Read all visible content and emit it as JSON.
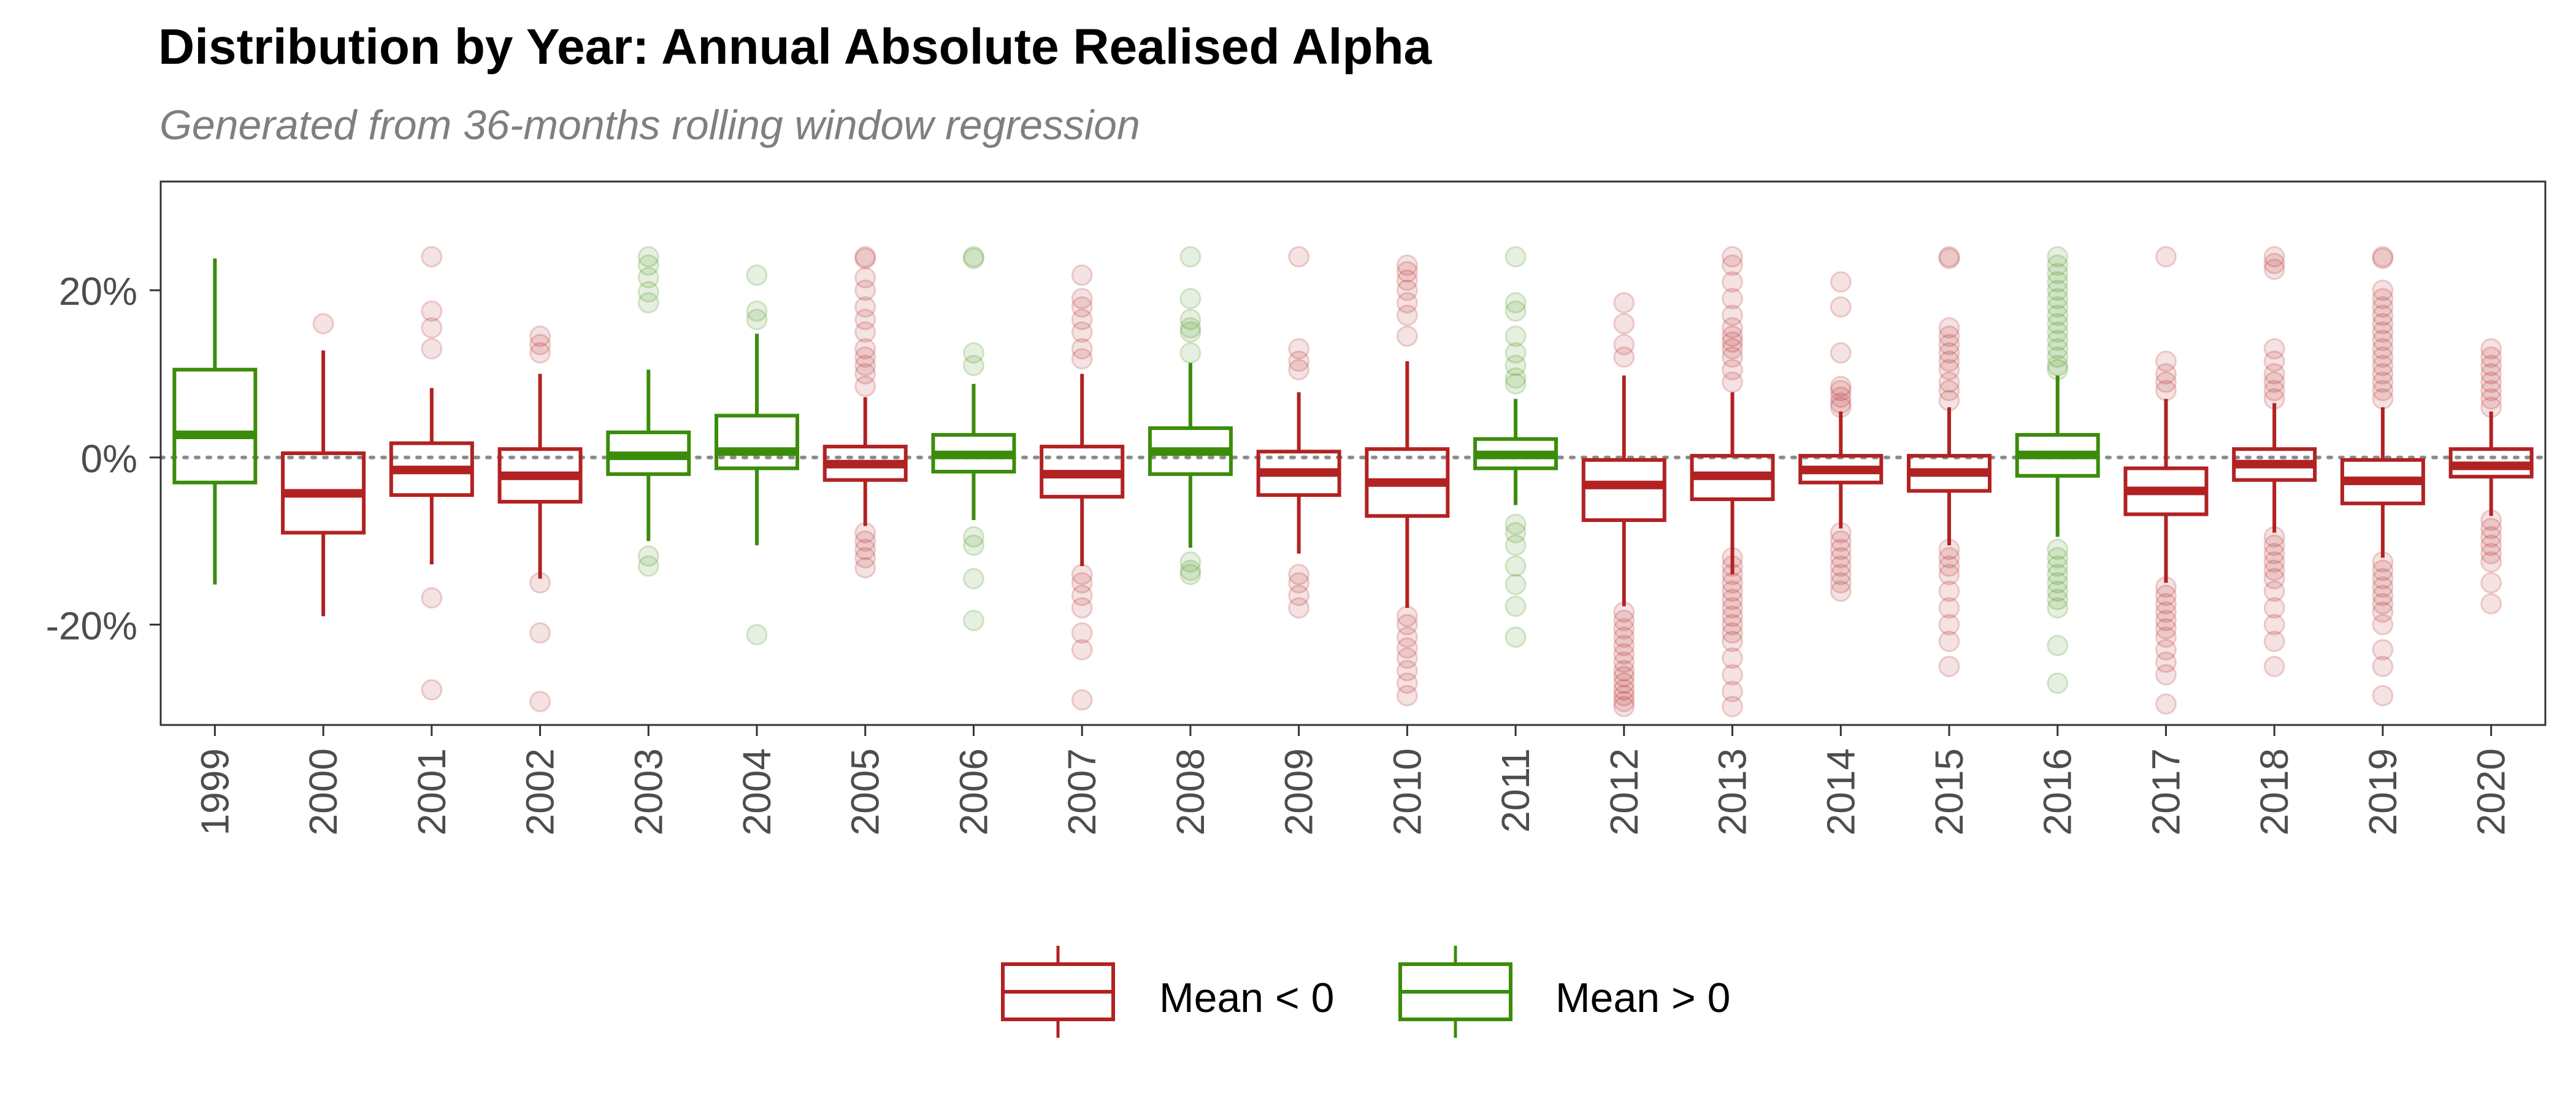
{
  "chart_data": {
    "type": "boxplot",
    "title": "Distribution by Year: Annual Absolute Realised Alpha",
    "subtitle": "Generated from 36-months rolling window regression",
    "xlabel": "",
    "ylabel": "",
    "ylim": [
      -0.32,
      0.33
    ],
    "y_ticks": [
      -0.2,
      0.0,
      0.2
    ],
    "y_tick_labels": [
      "-20%",
      "0%",
      "20%"
    ],
    "reference_line": 0,
    "grid": false,
    "legend_position": "bottom",
    "colors": {
      "Mean < 0": "#b22222",
      "Mean > 0": "#3c8c0c"
    },
    "legend": [
      {
        "label": "Mean < 0",
        "color": "#b22222"
      },
      {
        "label": "Mean > 0",
        "color": "#3c8c0c"
      }
    ],
    "categories": [
      "1999",
      "2000",
      "2001",
      "2002",
      "2003",
      "2004",
      "2005",
      "2006",
      "2007",
      "2008",
      "2009",
      "2010",
      "2011",
      "2012",
      "2013",
      "2014",
      "2015",
      "2016",
      "2017",
      "2018",
      "2019",
      "2020"
    ],
    "boxes": [
      {
        "year": "1999",
        "group": "Mean > 0",
        "min": -0.152,
        "q1": -0.03,
        "median": 0.027,
        "q3": 0.105,
        "max": 0.238,
        "outliers": []
      },
      {
        "year": "2000",
        "group": "Mean < 0",
        "min": -0.19,
        "q1": -0.09,
        "median": -0.043,
        "q3": 0.005,
        "max": 0.128,
        "outliers": [
          0.16
        ]
      },
      {
        "year": "2001",
        "group": "Mean < 0",
        "min": -0.128,
        "q1": -0.045,
        "median": -0.015,
        "q3": 0.017,
        "max": 0.083,
        "outliers": [
          0.24,
          0.175,
          0.155,
          0.13,
          -0.168,
          -0.278
        ]
      },
      {
        "year": "2002",
        "group": "Mean < 0",
        "min": -0.145,
        "q1": -0.053,
        "median": -0.022,
        "q3": 0.01,
        "max": 0.1,
        "outliers": [
          0.145,
          0.135,
          0.125,
          -0.15,
          -0.21,
          -0.292
        ]
      },
      {
        "year": "2003",
        "group": "Mean > 0",
        "min": -0.1,
        "q1": -0.02,
        "median": 0.002,
        "q3": 0.03,
        "max": 0.105,
        "outliers": [
          0.24,
          0.23,
          0.215,
          0.198,
          0.185,
          -0.118,
          -0.13
        ]
      },
      {
        "year": "2004",
        "group": "Mean > 0",
        "min": -0.105,
        "q1": -0.013,
        "median": 0.007,
        "q3": 0.05,
        "max": 0.148,
        "outliers": [
          0.218,
          0.175,
          0.165,
          -0.212
        ]
      },
      {
        "year": "2005",
        "group": "Mean < 0",
        "min": -0.082,
        "q1": -0.027,
        "median": -0.008,
        "q3": 0.013,
        "max": 0.072,
        "outliers": [
          0.24,
          0.238,
          0.215,
          0.2,
          0.18,
          0.165,
          0.15,
          0.13,
          0.12,
          0.11,
          0.1,
          0.085,
          -0.09,
          -0.1,
          -0.11,
          -0.12,
          -0.132
        ]
      },
      {
        "year": "2006",
        "group": "Mean > 0",
        "min": -0.075,
        "q1": -0.017,
        "median": 0.003,
        "q3": 0.027,
        "max": 0.088,
        "outliers": [
          0.24,
          0.238,
          0.125,
          0.11,
          -0.095,
          -0.105,
          -0.145,
          -0.195
        ]
      },
      {
        "year": "2007",
        "group": "Mean < 0",
        "min": -0.13,
        "q1": -0.047,
        "median": -0.02,
        "q3": 0.013,
        "max": 0.1,
        "outliers": [
          0.218,
          0.19,
          0.18,
          0.165,
          0.15,
          0.13,
          0.118,
          -0.14,
          -0.15,
          -0.165,
          -0.18,
          -0.21,
          -0.23,
          -0.29
        ]
      },
      {
        "year": "2008",
        "group": "Mean > 0",
        "min": -0.108,
        "q1": -0.02,
        "median": 0.007,
        "q3": 0.035,
        "max": 0.113,
        "outliers": [
          0.24,
          0.19,
          0.165,
          0.155,
          0.15,
          0.125,
          -0.125,
          -0.135,
          -0.14
        ]
      },
      {
        "year": "2009",
        "group": "Mean < 0",
        "min": -0.115,
        "q1": -0.045,
        "median": -0.018,
        "q3": 0.007,
        "max": 0.078,
        "outliers": [
          0.24,
          0.13,
          0.115,
          0.105,
          -0.14,
          -0.15,
          -0.165,
          -0.18
        ]
      },
      {
        "year": "2010",
        "group": "Mean < 0",
        "min": -0.18,
        "q1": -0.07,
        "median": -0.03,
        "q3": 0.01,
        "max": 0.115,
        "outliers": [
          0.23,
          0.222,
          0.212,
          0.2,
          0.185,
          0.17,
          0.145,
          -0.19,
          -0.2,
          -0.215,
          -0.228,
          -0.24,
          -0.255,
          -0.27,
          -0.285
        ]
      },
      {
        "year": "2011",
        "group": "Mean > 0",
        "min": -0.057,
        "q1": -0.013,
        "median": 0.003,
        "q3": 0.022,
        "max": 0.07,
        "outliers": [
          0.24,
          0.185,
          0.175,
          0.145,
          0.125,
          0.11,
          0.095,
          0.088,
          -0.08,
          -0.09,
          -0.105,
          -0.13,
          -0.152,
          -0.178,
          -0.215
        ]
      },
      {
        "year": "2012",
        "group": "Mean < 0",
        "min": -0.178,
        "q1": -0.075,
        "median": -0.033,
        "q3": -0.003,
        "max": 0.098,
        "outliers": [
          0.185,
          0.16,
          0.135,
          0.12,
          -0.185,
          -0.195,
          -0.205,
          -0.215,
          -0.225,
          -0.235,
          -0.245,
          -0.255,
          -0.262,
          -0.27,
          -0.278,
          -0.285,
          -0.292,
          -0.298
        ]
      },
      {
        "year": "2013",
        "group": "Mean < 0",
        "min": -0.14,
        "q1": -0.05,
        "median": -0.022,
        "q3": 0.002,
        "max": 0.078,
        "outliers": [
          0.24,
          0.23,
          0.21,
          0.19,
          0.17,
          0.155,
          0.145,
          0.138,
          0.13,
          0.12,
          0.105,
          0.09,
          -0.12,
          -0.13,
          -0.14,
          -0.15,
          -0.16,
          -0.17,
          -0.18,
          -0.19,
          -0.2,
          -0.21,
          -0.22,
          -0.24,
          -0.26,
          -0.28,
          -0.298
        ]
      },
      {
        "year": "2014",
        "group": "Mean < 0",
        "min": -0.085,
        "q1": -0.03,
        "median": -0.015,
        "q3": 0.002,
        "max": 0.055,
        "outliers": [
          0.21,
          0.18,
          0.125,
          0.085,
          0.08,
          0.072,
          0.065,
          0.06,
          -0.09,
          -0.1,
          -0.11,
          -0.12,
          -0.13,
          -0.14,
          -0.15,
          -0.16
        ]
      },
      {
        "year": "2015",
        "group": "Mean < 0",
        "min": -0.105,
        "q1": -0.04,
        "median": -0.018,
        "q3": 0.002,
        "max": 0.06,
        "outliers": [
          0.24,
          0.238,
          0.155,
          0.145,
          0.135,
          0.125,
          0.115,
          0.105,
          0.09,
          0.08,
          0.068,
          -0.11,
          -0.12,
          -0.13,
          -0.14,
          -0.16,
          -0.18,
          -0.2,
          -0.22,
          -0.25
        ]
      },
      {
        "year": "2016",
        "group": "Mean > 0",
        "min": -0.095,
        "q1": -0.022,
        "median": 0.003,
        "q3": 0.027,
        "max": 0.098,
        "outliers": [
          0.24,
          0.23,
          0.22,
          0.21,
          0.2,
          0.19,
          0.18,
          0.17,
          0.16,
          0.15,
          0.14,
          0.13,
          0.12,
          0.11,
          0.105,
          -0.11,
          -0.12,
          -0.13,
          -0.14,
          -0.15,
          -0.16,
          -0.17,
          -0.18,
          -0.225,
          -0.27
        ]
      },
      {
        "year": "2017",
        "group": "Mean < 0",
        "min": -0.15,
        "q1": -0.068,
        "median": -0.04,
        "q3": -0.013,
        "max": 0.07,
        "outliers": [
          0.24,
          0.115,
          0.1,
          0.09,
          0.08,
          -0.155,
          -0.165,
          -0.175,
          -0.185,
          -0.195,
          -0.205,
          -0.215,
          -0.23,
          -0.245,
          -0.26,
          -0.295
        ]
      },
      {
        "year": "2018",
        "group": "Mean < 0",
        "min": -0.09,
        "q1": -0.027,
        "median": -0.008,
        "q3": 0.01,
        "max": 0.065,
        "outliers": [
          0.24,
          0.232,
          0.225,
          0.13,
          0.115,
          0.1,
          0.09,
          0.08,
          0.07,
          -0.095,
          -0.105,
          -0.115,
          -0.125,
          -0.135,
          -0.145,
          -0.16,
          -0.18,
          -0.2,
          -0.22,
          -0.25
        ]
      },
      {
        "year": "2019",
        "group": "Mean < 0",
        "min": -0.12,
        "q1": -0.055,
        "median": -0.028,
        "q3": -0.003,
        "max": 0.06,
        "outliers": [
          0.24,
          0.238,
          0.2,
          0.19,
          0.18,
          0.17,
          0.16,
          0.15,
          0.14,
          0.13,
          0.12,
          0.11,
          0.1,
          0.09,
          0.08,
          0.07,
          -0.125,
          -0.135,
          -0.145,
          -0.155,
          -0.165,
          -0.175,
          -0.185,
          -0.2,
          -0.23,
          -0.25,
          -0.285
        ]
      },
      {
        "year": "2020",
        "group": "Mean < 0",
        "min": -0.07,
        "q1": -0.023,
        "median": -0.01,
        "q3": 0.01,
        "max": 0.055,
        "outliers": [
          0.13,
          0.12,
          0.11,
          0.1,
          0.09,
          0.08,
          0.07,
          0.06,
          -0.075,
          -0.085,
          -0.095,
          -0.105,
          -0.115,
          -0.125,
          -0.15,
          -0.175
        ]
      }
    ]
  }
}
